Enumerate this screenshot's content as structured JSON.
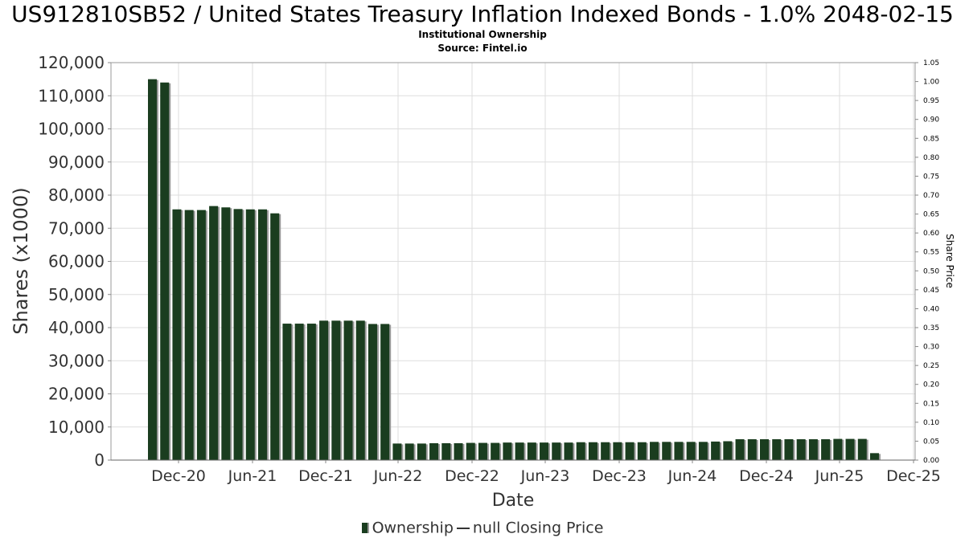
{
  "chart_data": {
    "type": "bar",
    "title": "US912810SB52 / United States Treasury Inflation Indexed Bonds - 1.0% 2048-02-15",
    "subtitle": "Institutional Ownership",
    "source": "Source: Fintel.io",
    "xlabel": "Date",
    "ylabel": "Shares (x1000)",
    "y2label": "Share Price",
    "ylim": [
      0,
      120000
    ],
    "y2lim": [
      0,
      1.05
    ],
    "y_ticks": [
      "0",
      "10,000",
      "20,000",
      "30,000",
      "40,000",
      "50,000",
      "60,000",
      "70,000",
      "80,000",
      "90,000",
      "100,000",
      "110,000",
      "120,000"
    ],
    "y2_ticks": [
      "0.00",
      "0.05",
      "0.10",
      "0.15",
      "0.20",
      "0.25",
      "0.30",
      "0.35",
      "0.40",
      "0.45",
      "0.50",
      "0.55",
      "0.60",
      "0.65",
      "0.70",
      "0.75",
      "0.80",
      "0.85",
      "0.90",
      "0.95",
      "1.00",
      "1.05"
    ],
    "x_ticks": [
      "Dec-20",
      "Jun-21",
      "Dec-21",
      "Jun-22",
      "Dec-22",
      "Jun-23",
      "Dec-23",
      "Jun-24",
      "Dec-24",
      "Jun-25",
      "Dec-25"
    ],
    "grid": true,
    "legend_position": "bottom",
    "series": [
      {
        "name": "Ownership",
        "color": "#1a3d1f",
        "values": [
          115000,
          114000,
          75700,
          75500,
          75500,
          76700,
          76300,
          75800,
          75700,
          75700,
          74500,
          41200,
          41200,
          41200,
          42100,
          42100,
          42100,
          42100,
          41100,
          41100,
          5000,
          5000,
          5000,
          5100,
          5100,
          5100,
          5200,
          5200,
          5200,
          5300,
          5300,
          5300,
          5300,
          5300,
          5300,
          5400,
          5400,
          5400,
          5400,
          5400,
          5400,
          5500,
          5500,
          5500,
          5500,
          5500,
          5600,
          5700,
          6300,
          6300,
          6300,
          6300,
          6300,
          6300,
          6300,
          6300,
          6400,
          6400,
          6400,
          2100
        ]
      },
      {
        "name": "null Closing Price",
        "color": "#333333",
        "values": []
      }
    ]
  }
}
